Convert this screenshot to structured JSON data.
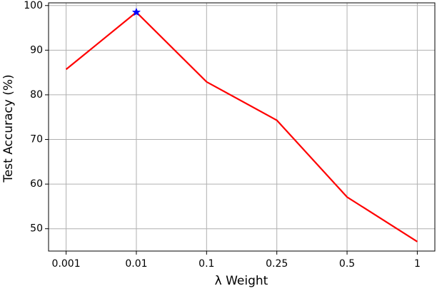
{
  "chart_data": {
    "type": "line",
    "xlabel": "λ Weight",
    "ylabel": "Test Accuracy (%)",
    "categories": [
      "0.001",
      "0.01",
      "0.1",
      "0.25",
      "0.5",
      "1"
    ],
    "values": [
      85.7,
      98.5,
      82.9,
      74.3,
      57.1,
      47.1
    ],
    "color": "#ff0000",
    "highlight": {
      "index": 1,
      "marker": "star",
      "color": "#0000ff"
    },
    "ylim": [
      45,
      100.6
    ],
    "yticks": [
      50,
      60,
      70,
      80,
      90,
      100
    ],
    "grid": true
  }
}
